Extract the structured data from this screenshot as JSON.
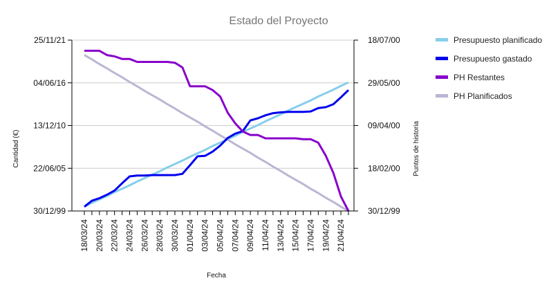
{
  "chart_data": {
    "type": "line",
    "title": "Estado del Proyecto",
    "xlabel": "Fecha",
    "ylabel_left": "Cantidad (€)",
    "ylabel_right": "Puntos de historia",
    "x": [
      "18/03/24",
      "19/03/24",
      "20/03/24",
      "21/03/24",
      "22/03/24",
      "23/03/24",
      "24/03/24",
      "25/03/24",
      "26/03/24",
      "27/03/24",
      "28/03/24",
      "29/03/24",
      "30/03/24",
      "31/03/24",
      "01/04/24",
      "02/04/24",
      "03/04/24",
      "04/04/24",
      "05/04/24",
      "06/04/24",
      "07/04/24",
      "08/04/24",
      "09/04/24",
      "10/04/24",
      "11/04/24",
      "12/04/24",
      "13/04/24",
      "14/04/24",
      "15/04/24",
      "16/04/24",
      "17/04/24",
      "18/04/24",
      "19/04/24",
      "20/04/24",
      "21/04/24",
      "22/04/24"
    ],
    "x_tick_labels": [
      "18/03/24",
      "20/03/24",
      "22/03/24",
      "24/03/24",
      "26/03/24",
      "28/03/24",
      "30/03/24",
      "01/04/24",
      "03/04/24",
      "05/04/24",
      "07/04/24",
      "09/04/24",
      "11/04/24",
      "13/04/24",
      "15/04/24",
      "17/04/24",
      "19/04/24",
      "21/04/24"
    ],
    "left_ticks": [
      "30/12/99",
      "22/06/05",
      "13/12/10",
      "04/06/16",
      "25/11/21"
    ],
    "right_ticks": [
      "30/12/99",
      "18/02/00",
      "09/04/00",
      "29/05/00",
      "18/07/00"
    ],
    "ylim": [
      0,
      4
    ],
    "grid": true,
    "legend_position": "right",
    "series": [
      {
        "name": "Presupuesto planificado",
        "color": "#87ceeb",
        "axis": "left",
        "values": [
          0.1,
          0.19,
          0.27,
          0.35,
          0.44,
          0.52,
          0.6,
          0.69,
          0.77,
          0.85,
          0.93,
          1.02,
          1.1,
          1.18,
          1.27,
          1.35,
          1.43,
          1.52,
          1.6,
          1.68,
          1.76,
          1.85,
          1.93,
          2.01,
          2.1,
          2.18,
          2.26,
          2.35,
          2.43,
          2.51,
          2.59,
          2.68,
          2.76,
          2.84,
          2.93,
          3.01
        ]
      },
      {
        "name": "Presupuesto gastado",
        "color": "#0000ee",
        "axis": "left",
        "values": [
          0.1,
          0.24,
          0.3,
          0.38,
          0.48,
          0.65,
          0.81,
          0.83,
          0.83,
          0.84,
          0.84,
          0.84,
          0.84,
          0.87,
          1.07,
          1.28,
          1.29,
          1.39,
          1.53,
          1.71,
          1.81,
          1.87,
          2.12,
          2.17,
          2.24,
          2.29,
          2.31,
          2.32,
          2.32,
          2.32,
          2.33,
          2.41,
          2.43,
          2.5,
          2.66,
          2.83
        ]
      },
      {
        "name": "PH Restantes",
        "color": "#8800cc",
        "axis": "left",
        "values": [
          3.75,
          3.75,
          3.75,
          3.65,
          3.62,
          3.56,
          3.56,
          3.49,
          3.49,
          3.49,
          3.49,
          3.49,
          3.47,
          3.36,
          2.92,
          2.92,
          2.92,
          2.83,
          2.68,
          2.3,
          2.05,
          1.86,
          1.78,
          1.78,
          1.7,
          1.7,
          1.7,
          1.7,
          1.7,
          1.68,
          1.68,
          1.6,
          1.29,
          0.89,
          0.34,
          0.0
        ]
      },
      {
        "name": "PH Planificados",
        "color": "#bbb6d3",
        "axis": "left",
        "values": [
          3.65,
          3.55,
          3.44,
          3.34,
          3.23,
          3.13,
          3.02,
          2.92,
          2.81,
          2.71,
          2.61,
          2.5,
          2.4,
          2.29,
          2.19,
          2.09,
          1.98,
          1.88,
          1.77,
          1.67,
          1.56,
          1.46,
          1.36,
          1.25,
          1.15,
          1.04,
          0.94,
          0.83,
          0.73,
          0.63,
          0.52,
          0.42,
          0.31,
          0.21,
          0.1,
          0.0
        ]
      }
    ]
  }
}
